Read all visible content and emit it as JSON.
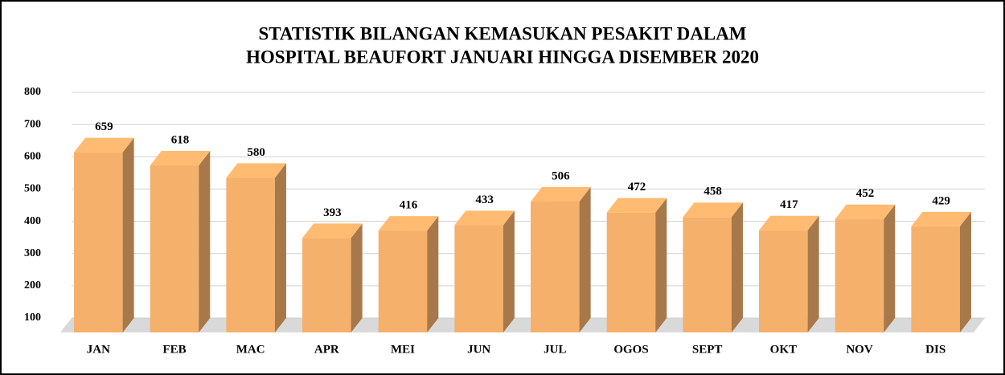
{
  "chart_data": {
    "type": "bar3d",
    "title": [
      "STATISTIK BILANGAN KEMASUKAN PESAKIT DALAM",
      "HOSPITAL BEAUFORT JANUARI HINGGA DISEMBER 2020"
    ],
    "categories": [
      "JAN",
      "FEB",
      "MAC",
      "APR",
      "MEI",
      "JUN",
      "JUL",
      "OGOS",
      "SEPT",
      "OKT",
      "NOV",
      "DIS"
    ],
    "values": [
      659,
      618,
      580,
      393,
      416,
      433,
      506,
      472,
      458,
      417,
      452,
      429
    ],
    "color": "#f5b06b",
    "ylim": [
      100,
      800
    ],
    "yticks": [
      100,
      200,
      300,
      400,
      500,
      600,
      700,
      800
    ],
    "grid": true
  }
}
